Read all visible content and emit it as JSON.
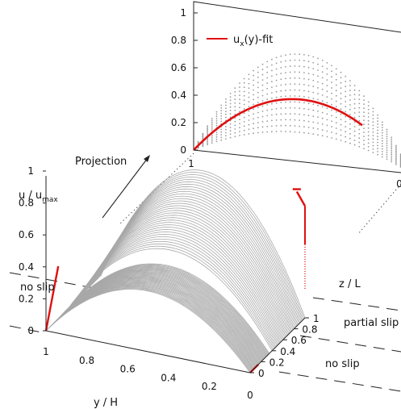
{
  "chart_data": [
    {
      "type": "line",
      "view": "3d-surface",
      "xlabel": "y / H",
      "ylabel": "u / u",
      "ylabel_sub": "max",
      "zlabel": "z / L",
      "x_ticks": [
        "1",
        "0.8",
        "0.6",
        "0.4",
        "0.2",
        "0"
      ],
      "y_ticks": [
        "0",
        "0.2",
        "0.4",
        "0.6",
        "0.8",
        "1"
      ],
      "z_ticks": [
        "0",
        "0.2",
        "0.4",
        "0.6",
        "0.8",
        "1"
      ],
      "xlim": [
        1,
        0
      ],
      "ylim": [
        0,
        1
      ],
      "zlim": [
        0,
        1
      ],
      "grid": false,
      "regions": [
        {
          "label": "no slip",
          "z_range": [
            0,
            0.4
          ]
        },
        {
          "label": "partial slip",
          "z_range": [
            0.4,
            1
          ]
        }
      ],
      "region_left_label": "no slip",
      "profile_shape": "u/u_max = 4*(y/H)*(1-y/H) scaled by a peak amplitude per z-slice",
      "series": [
        {
          "role": "gray",
          "z_range": [
            0.0,
            0.35
          ],
          "peak_range": [
            0.38,
            0.42
          ]
        },
        {
          "role": "gray",
          "z_range": [
            0.4,
            1.0
          ],
          "peak_range": [
            0.5,
            0.79
          ]
        },
        {
          "role": "red",
          "z": 0
        },
        {
          "role": "red",
          "z": 1
        }
      ]
    },
    {
      "type": "scatter",
      "view": "projection",
      "annotation": "Projection",
      "legend": [
        {
          "label": "u",
          "sub": "x",
          "rest": "(y)-fit",
          "color": "#e01010"
        }
      ],
      "legend_loc": "top-left",
      "y_ticks": [
        "0",
        "0.2",
        "0.4",
        "0.6",
        "0.8",
        "1"
      ],
      "x_tick_left": "1",
      "x_tick_right": "0",
      "ylim": [
        0,
        1
      ],
      "fit_peak": 0.5,
      "fit_domain": [
        1.0,
        0.22
      ],
      "dot_peak_range": [
        0.21,
        0.78
      ],
      "dot_color": "#9a9a9a"
    }
  ],
  "colors": {
    "gray": "#a8a8a8",
    "red": "#e01010",
    "axis": "#222222"
  }
}
